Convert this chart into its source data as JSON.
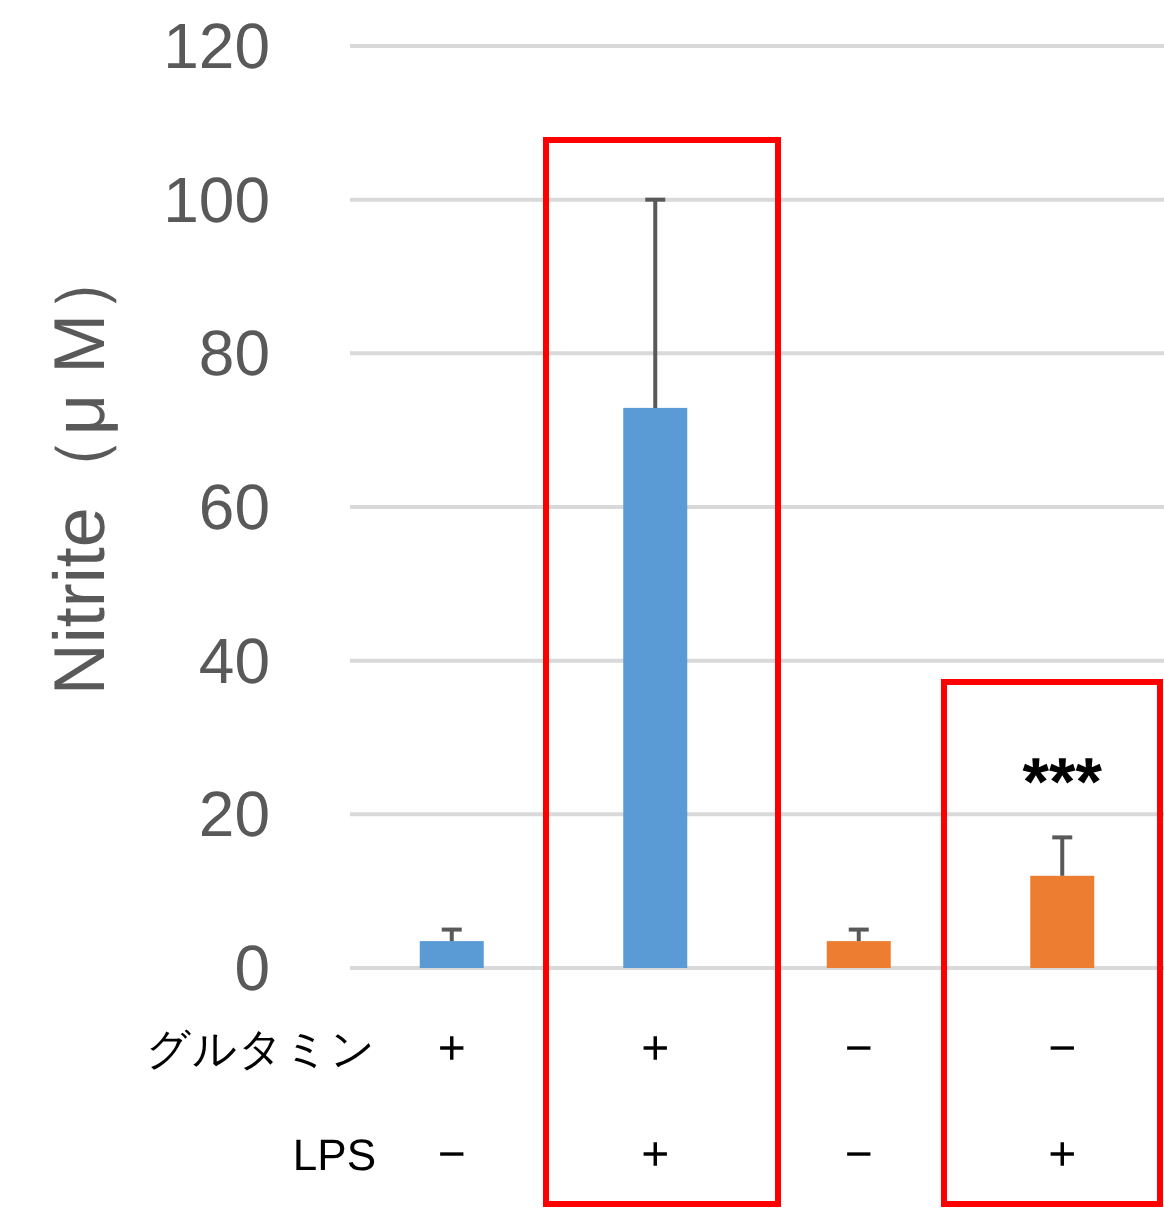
{
  "chart_data": {
    "type": "bar",
    "ylabel": "Nitrite（μ M）",
    "categories": [
      null,
      null,
      null,
      null
    ],
    "values": [
      3.5,
      72.9,
      3.5,
      12
    ],
    "errors": [
      1.5,
      27.1,
      1.5,
      5
    ],
    "colors": [
      "#5b9bd5",
      "#5b9bd5",
      "#ed7d31",
      "#ed7d31"
    ],
    "ylim": [
      0,
      120
    ],
    "yticks": [
      0,
      20,
      40,
      60,
      80,
      100,
      120
    ],
    "grid": "y",
    "annotations": [
      "グルタミン",
      "+",
      "+",
      "−",
      "−",
      "LPS",
      "−",
      "+",
      "−",
      "+",
      "***"
    ]
  }
}
